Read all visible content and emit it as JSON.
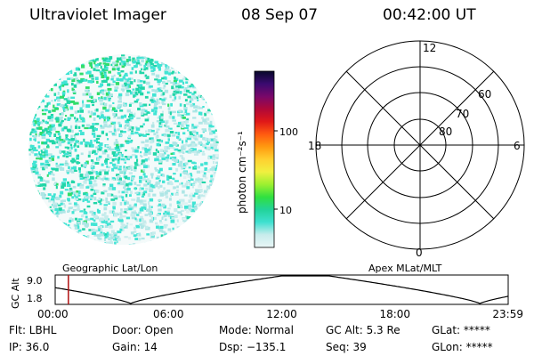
{
  "header": {
    "title": "Ultraviolet Imager",
    "date": "08 Sep 07",
    "time": "00:42:00 UT"
  },
  "colorbar": {
    "unit_label": "photon cm⁻²s⁻¹",
    "ticks": [
      "100",
      "10"
    ]
  },
  "polar_plot": {
    "mlt_labels": {
      "top": "12",
      "left": "18",
      "right": "6",
      "bottom": "0"
    },
    "lat_labels": [
      "60",
      "70",
      "80"
    ]
  },
  "orbit_plot": {
    "left_title": "Geographic Lat/Lon",
    "right_title": "Apex MLat/MLT",
    "y_axis_label": "GC Alt",
    "y_ticks": [
      "9.0",
      "1.8"
    ],
    "x_ticks": [
      "00:00",
      "06:00",
      "12:00",
      "18:00",
      "23:59"
    ],
    "current_time_marker": "00:42"
  },
  "status": {
    "row1": [
      {
        "key": "flt",
        "text": "Flt: LBHL"
      },
      {
        "key": "door",
        "text": "Door: Open"
      },
      {
        "key": "mode",
        "text": "Mode: Normal"
      },
      {
        "key": "gcalt",
        "text": "GC Alt: 5.3 Re"
      },
      {
        "key": "glat",
        "text": "GLat: *****"
      }
    ],
    "row2": [
      {
        "key": "ip",
        "text": "IP: 36.0"
      },
      {
        "key": "gain",
        "text": "Gain: 14"
      },
      {
        "key": "dsp",
        "text": "Dsp: −135.1"
      },
      {
        "key": "seq",
        "text": "Seq: 39"
      },
      {
        "key": "glon",
        "text": "GLon: *****"
      }
    ]
  },
  "colors": {
    "colorbar_stops": [
      "#e9f6f6",
      "#c8ecec",
      "#3fe0d0",
      "#22d39a",
      "#30e040",
      "#9cf030",
      "#f0f040",
      "#ffd030",
      "#ff9a10",
      "#ff5a10",
      "#e01818",
      "#b00838",
      "#78086a",
      "#3a0a70",
      "#08082a"
    ],
    "image_palette": [
      "#dff2f2",
      "#c6ecec",
      "#aee6e6",
      "#41e4d4",
      "#22d6a8",
      "#30dd6a"
    ],
    "time_marker": "#b01010"
  }
}
